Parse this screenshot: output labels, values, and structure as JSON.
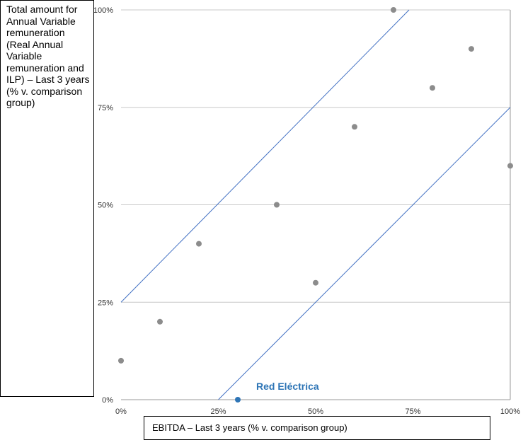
{
  "chart_data": {
    "type": "scatter",
    "xlabel": "EBITDA – Last 3 years (% v. comparison group)",
    "ylabel": "Total amount for Annual Variable remuneration (Real Annual Variable remuneration and ILP) – Last 3 years (% v. comparison group)",
    "xlim": [
      0,
      100
    ],
    "ylim": [
      0,
      100
    ],
    "xticks": [
      "0%",
      "25%",
      "50%",
      "75%",
      "100%"
    ],
    "yticks": [
      "0%",
      "25%",
      "50%",
      "75%",
      "100%"
    ],
    "grid": "horizontal",
    "series": [
      {
        "color": "#8c8c8c",
        "points": [
          {
            "x": 0,
            "y": 10
          },
          {
            "x": 10,
            "y": 20
          },
          {
            "x": 20,
            "y": 40
          },
          {
            "x": 40,
            "y": 50
          },
          {
            "x": 50,
            "y": 30
          },
          {
            "x": 60,
            "y": 70
          },
          {
            "x": 70,
            "y": 100
          },
          {
            "x": 80,
            "y": 80
          },
          {
            "x": 90,
            "y": 90
          },
          {
            "x": 100,
            "y": 60
          }
        ]
      },
      {
        "name": "Red Eléctrica",
        "color": "#2e75b6",
        "points": [
          {
            "x": 30,
            "y": 0
          }
        ]
      }
    ],
    "band_lines": [
      {
        "color": "#4472c4",
        "points": [
          [
            0,
            25
          ],
          [
            74,
            100
          ]
        ]
      },
      {
        "color": "#4472c4",
        "points": [
          [
            25,
            0
          ],
          [
            100,
            75
          ]
        ]
      }
    ],
    "annotations": [
      {
        "text": "Red Eléctrica",
        "x": 30,
        "y": 0
      }
    ]
  }
}
